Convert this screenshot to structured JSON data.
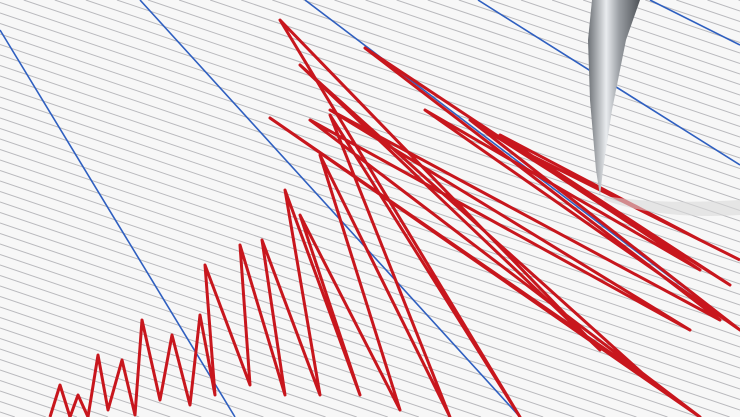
{
  "image": {
    "subject": "seismograph",
    "colors": {
      "paper": "#f7f7f7",
      "grid_line": "#b9b9bd",
      "major_line": "#2f5fc0",
      "trace": "#c8161d",
      "needle": "#a9adb2"
    }
  }
}
